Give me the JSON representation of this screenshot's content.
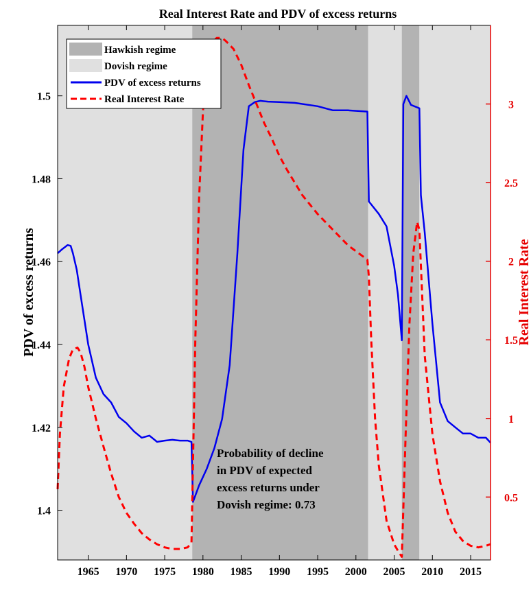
{
  "chart_data": {
    "type": "line",
    "title": "Real Interest Rate and PDV of excess returns",
    "ylabel_left": "PDV of excess returns",
    "ylabel_right": "Real Interest Rate",
    "xlim": [
      1961.0,
      2017.6
    ],
    "ylim_left": [
      1.388,
      1.517
    ],
    "ylim_right": [
      0.1,
      3.5
    ],
    "x_ticks": [
      1965,
      1970,
      1975,
      1980,
      1985,
      1990,
      1995,
      2000,
      2005,
      2010,
      2015
    ],
    "y_ticks_left": [
      1.4,
      1.42,
      1.44,
      1.46,
      1.48,
      1.5
    ],
    "y_ticks_right": [
      0.5,
      1,
      1.5,
      2,
      2.5,
      3
    ],
    "grid": false,
    "legend_position": "top-left",
    "colors": {
      "pdv": "#0000ee",
      "rate": "#ff0000",
      "hawkish": "#b3b3b3",
      "dovish": "#e0e0e0",
      "right_axis": "#e60000"
    },
    "regimes": [
      {
        "regime": "Dovish regime",
        "start": 1961.0,
        "end": 1978.6
      },
      {
        "regime": "Hawkish regime",
        "start": 1978.6,
        "end": 2001.6
      },
      {
        "regime": "Dovish regime",
        "start": 2001.6,
        "end": 2006.0
      },
      {
        "regime": "Hawkish regime",
        "start": 2006.0,
        "end": 2008.3
      },
      {
        "regime": "Dovish regime",
        "start": 2008.3,
        "end": 2017.6
      }
    ],
    "legend": [
      "Hawkish regime",
      "Dovish regime",
      "PDV of excess returns",
      "Real Interest Rate"
    ],
    "series": [
      {
        "name": "PDV of excess returns",
        "axis": "left",
        "style": "solid",
        "x": [
          1961.0,
          1961.6,
          1962.3,
          1962.7,
          1963.0,
          1963.5,
          1964.0,
          1965.0,
          1966.0,
          1967.0,
          1968.0,
          1969.0,
          1970.0,
          1971.0,
          1972.0,
          1973.0,
          1974.0,
          1975.0,
          1976.0,
          1977.0,
          1978.0,
          1978.5,
          1978.7,
          1979.5,
          1980.5,
          1981.5,
          1982.5,
          1983.5,
          1984.5,
          1985.3,
          1986.0,
          1986.8,
          1987.5,
          1988.5,
          1990.0,
          1992.0,
          1995.0,
          1997.0,
          1999.0,
          2001.5,
          2001.7,
          2003.0,
          2004.0,
          2005.0,
          2005.5,
          2006.0,
          2006.2,
          2006.6,
          2007.2,
          2008.3,
          2008.5,
          2009.0,
          2010.0,
          2011.0,
          2012.0,
          2013.0,
          2014.0,
          2015.0,
          2016.0,
          2017.0,
          2017.6
        ],
        "values": [
          1.462,
          1.463,
          1.464,
          1.4638,
          1.462,
          1.458,
          1.452,
          1.44,
          1.432,
          1.428,
          1.426,
          1.4225,
          1.421,
          1.419,
          1.4175,
          1.418,
          1.4165,
          1.4168,
          1.417,
          1.4168,
          1.4168,
          1.4165,
          1.402,
          1.406,
          1.41,
          1.415,
          1.422,
          1.435,
          1.462,
          1.487,
          1.4975,
          1.4985,
          1.4988,
          1.4986,
          1.4985,
          1.4983,
          1.4975,
          1.4965,
          1.4965,
          1.4962,
          1.4745,
          1.4715,
          1.4685,
          1.459,
          1.452,
          1.441,
          1.498,
          1.5,
          1.4978,
          1.497,
          1.476,
          1.467,
          1.445,
          1.426,
          1.4215,
          1.42,
          1.4185,
          1.4185,
          1.4175,
          1.4175,
          1.4163
        ]
      },
      {
        "name": "Real Interest Rate",
        "axis": "right",
        "style": "dashed",
        "x": [
          1961.0,
          1961.3,
          1961.8,
          1962.5,
          1963.0,
          1963.6,
          1964.0,
          1964.5,
          1965.0,
          1966.0,
          1967.0,
          1968.0,
          1969.0,
          1970.0,
          1971.0,
          1972.0,
          1973.0,
          1974.0,
          1975.0,
          1976.0,
          1977.0,
          1978.0,
          1978.5,
          1979.0,
          1979.5,
          1980.0,
          1980.5,
          1981.0,
          1981.8,
          1982.5,
          1983.0,
          1984.0,
          1985.0,
          1986.0,
          1987.0,
          1988.0,
          1989.0,
          1990.0,
          1991.0,
          1992.0,
          1993.0,
          1995.0,
          1997.0,
          1999.0,
          2001.5,
          2001.7,
          2002.0,
          2002.5,
          2003.0,
          2004.0,
          2005.0,
          2005.6,
          2006.0,
          2006.5,
          2007.0,
          2007.5,
          2008.0,
          2008.3,
          2009.0,
          2010.0,
          2011.0,
          2012.0,
          2013.0,
          2014.0,
          2015.0,
          2016.0,
          2017.0,
          2017.6
        ],
        "values": [
          0.55,
          0.9,
          1.2,
          1.38,
          1.44,
          1.45,
          1.42,
          1.33,
          1.2,
          1.0,
          0.82,
          0.65,
          0.5,
          0.4,
          0.33,
          0.27,
          0.23,
          0.2,
          0.18,
          0.17,
          0.17,
          0.18,
          0.21,
          1.5,
          2.4,
          2.95,
          3.25,
          3.38,
          3.42,
          3.42,
          3.4,
          3.35,
          3.25,
          3.12,
          3.0,
          2.88,
          2.78,
          2.67,
          2.58,
          2.5,
          2.42,
          2.3,
          2.2,
          2.1,
          2.01,
          1.9,
          1.5,
          1.0,
          0.7,
          0.35,
          0.2,
          0.15,
          0.12,
          0.9,
          1.6,
          2.05,
          2.25,
          2.2,
          1.4,
          0.9,
          0.6,
          0.4,
          0.28,
          0.22,
          0.19,
          0.18,
          0.19,
          0.2
        ]
      }
    ],
    "annotation": [
      "Probability of decline",
      "in PDV of expected",
      "excess returns under",
      "Dovish regime: 0.73"
    ]
  }
}
